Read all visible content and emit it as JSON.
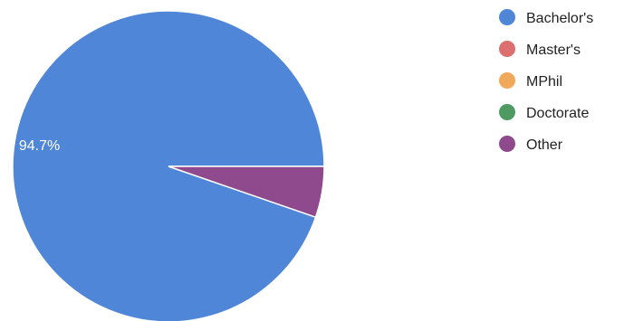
{
  "chart_data": {
    "type": "pie",
    "categories": [
      "Bachelor's",
      "Master's",
      "MPhil",
      "Doctorate",
      "Other"
    ],
    "values": [
      94.7,
      0,
      0,
      0,
      5.3
    ],
    "colors": [
      "#4F86D8",
      "#DC6F6F",
      "#F0A85A",
      "#4E9A62",
      "#8E4A8C"
    ],
    "data_labels": [
      "94.7%",
      "",
      "",
      "",
      ""
    ],
    "legend": {
      "position": "right",
      "items": [
        "Bachelor's",
        "Master's",
        "MPhil",
        "Doctorate",
        "Other"
      ]
    },
    "start_angle_deg": 0,
    "direction": "counterclockwise"
  }
}
